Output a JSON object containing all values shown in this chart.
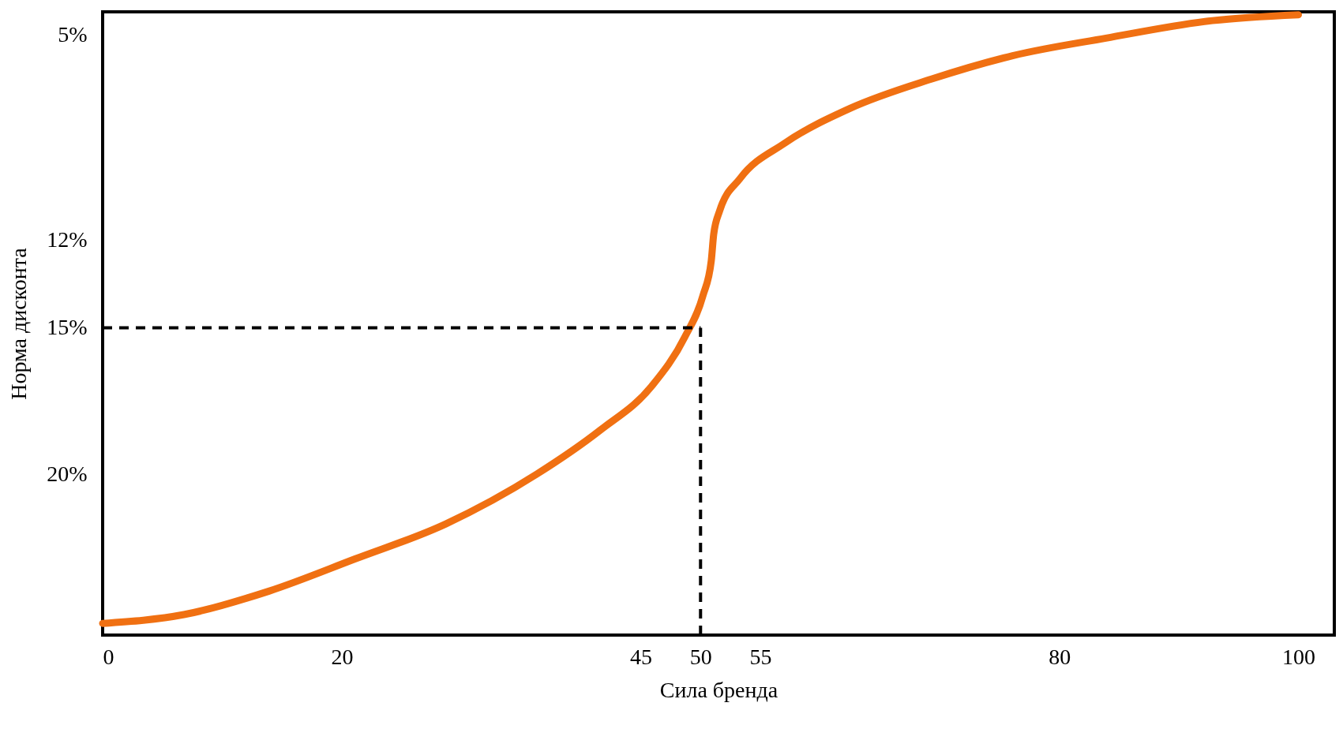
{
  "chart_data": {
    "type": "line",
    "xlabel": "Сила бренда",
    "ylabel": "Норма дисконта",
    "x": [
      0,
      6.8,
      13.9,
      21.1,
      28.7,
      36.3,
      41.6,
      45.9,
      48.7,
      50.2,
      50.9,
      51.1,
      51.6,
      53.3,
      57.0,
      62.5,
      69.3,
      76.1,
      83.9,
      92.8,
      100
    ],
    "series": [
      {
        "color": "#f07012",
        "values": [
          25.1,
          24.8,
          24.0,
          22.9,
          21.7,
          20.0,
          18.5,
          17.0,
          15.3,
          13.9,
          12.7,
          11.8,
          11.0,
          9.9,
          8.7,
          7.5,
          6.5,
          5.7,
          5.1,
          4.5,
          4.3
        ]
      }
    ],
    "xlim": [
      0,
      103
    ],
    "ylim": [
      25.5,
      4.2
    ],
    "xticks": [
      0,
      20,
      45,
      50,
      55,
      80,
      100
    ],
    "yticks": [
      {
        "value": 5,
        "label": "5%"
      },
      {
        "value": 12,
        "label": "12%"
      },
      {
        "value": 15,
        "label": "15%"
      },
      {
        "value": 20,
        "label": "20%"
      }
    ],
    "ref_lines": [
      {
        "axis": "y",
        "value": 15,
        "color": "#000000",
        "line_style": "dashed"
      },
      {
        "axis": "x",
        "value": 50,
        "color": "#000000",
        "line_style": "dashed"
      }
    ],
    "grid": false,
    "marker": "none",
    "line_style": "solid"
  }
}
